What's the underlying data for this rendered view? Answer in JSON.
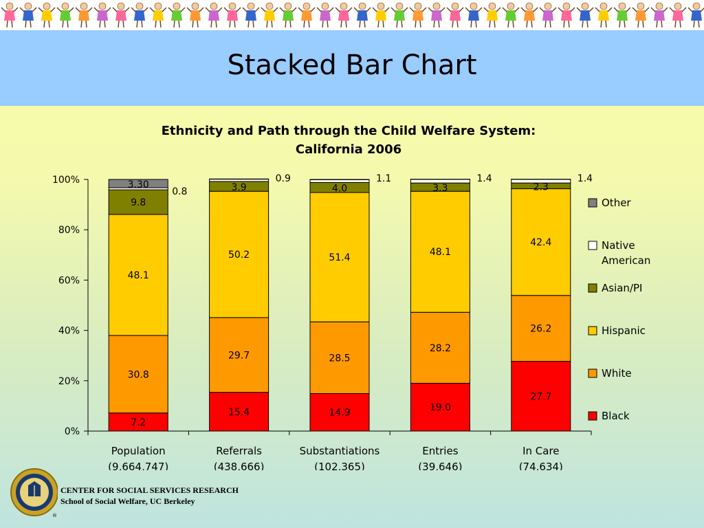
{
  "slide": {
    "title": "Stacked Bar Chart"
  },
  "footer": {
    "org": "CENTER FOR SOCIAL SERVICES RESEARCH",
    "school": "School of Social Welfare, UC Berkeley"
  },
  "colors": {
    "banner_figures": [
      "#ff6699",
      "#3366cc",
      "#ffcc00",
      "#66cc33",
      "#ff9933",
      "#cc66cc"
    ],
    "title_band": "#99ccff",
    "Black": "#ff0000",
    "White": "#ff9900",
    "Hispanic": "#ffcc00",
    "Asian/PI": "#808000",
    "Native American": "#ffffff",
    "Other": "#808080"
  },
  "chart_data": {
    "type": "bar",
    "stacked": true,
    "title": "Ethnicity and Path through the Child Welfare System:",
    "subtitle": "California 2006",
    "categories": [
      "Population",
      "Referrals",
      "Substantiations",
      "Entries",
      "In Care"
    ],
    "category_counts": [
      "(9,664,747)",
      "(438,666)",
      "(102,365)",
      "(39,646)",
      "(74,634)"
    ],
    "y_ticks": [
      "0%",
      "20%",
      "40%",
      "60%",
      "80%",
      "100%"
    ],
    "ylim": [
      0,
      100
    ],
    "legend_position": "right",
    "series": [
      {
        "name": "Black",
        "values": [
          7.2,
          15.4,
          14.9,
          19.0,
          27.7
        ],
        "labels": [
          "7.2",
          "15.4",
          "14.9",
          "19.0",
          "27.7"
        ]
      },
      {
        "name": "White",
        "values": [
          30.8,
          29.7,
          28.5,
          28.2,
          26.2
        ],
        "labels": [
          "30.8",
          "29.7",
          "28.5",
          "28.2",
          "26.2"
        ]
      },
      {
        "name": "Hispanic",
        "values": [
          48.1,
          50.2,
          51.4,
          48.1,
          42.4
        ],
        "labels": [
          "48.1",
          "50.2",
          "51.4",
          "48.1",
          "42.4"
        ]
      },
      {
        "name": "Asian/PI",
        "values": [
          9.8,
          3.9,
          4.0,
          3.3,
          2.3
        ],
        "labels": [
          "9.8",
          "3.9",
          "4.0",
          "3.3",
          "2.3"
        ]
      },
      {
        "name": "Native American",
        "values": [
          0.8,
          0.9,
          1.1,
          1.4,
          1.4
        ],
        "labels": [
          "0.8",
          "0.9",
          "1.1",
          "1.4",
          "1.4"
        ]
      },
      {
        "name": "Other",
        "values": [
          3.3,
          0.1,
          0.1,
          0.1,
          0.1
        ],
        "labels": [
          "3.30",
          "",
          "",
          "",
          ""
        ]
      }
    ],
    "legend": [
      {
        "label": "Other",
        "color_key": "Other"
      },
      {
        "label": "Native American",
        "color_key": "Native American"
      },
      {
        "label": "Asian/PI",
        "color_key": "Asian/PI"
      },
      {
        "label": "Hispanic",
        "color_key": "Hispanic"
      },
      {
        "label": "White",
        "color_key": "White"
      },
      {
        "label": "Black",
        "color_key": "Black"
      }
    ]
  }
}
